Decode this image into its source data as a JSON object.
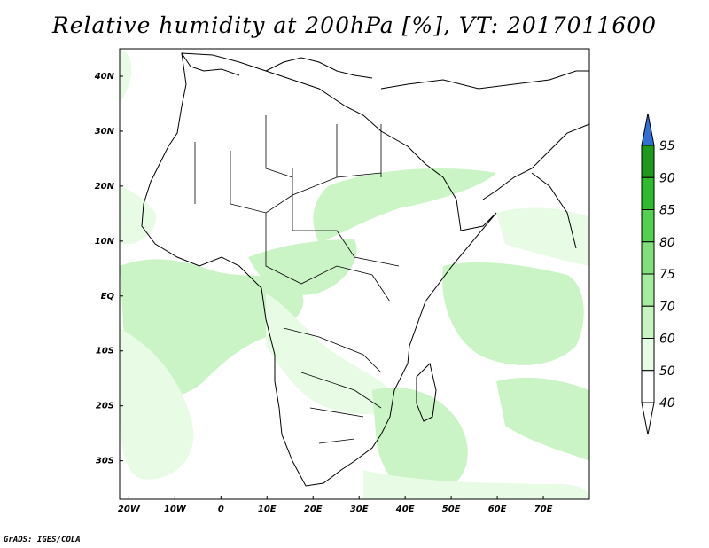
{
  "title": "Relative humidity at 200hPa [%], VT: 2017011600",
  "credit": "GrADS: IGES/COLA",
  "map": {
    "lon_range": [
      -22,
      80
    ],
    "lat_range": [
      -37,
      45
    ],
    "lon_ticks": [
      "20W",
      "10W",
      "0",
      "10E",
      "20E",
      "30E",
      "40E",
      "50E",
      "60E",
      "70E"
    ],
    "lat_ticks": [
      "40N",
      "30N",
      "20N",
      "10N",
      "EQ",
      "10S",
      "20S",
      "30S"
    ]
  },
  "colorbar": {
    "levels": [
      "40",
      "50",
      "60",
      "70",
      "75",
      "80",
      "85",
      "90",
      "95"
    ],
    "colors": [
      "#ffffff",
      "#e6fbe4",
      "#c8f4c2",
      "#a6eca0",
      "#7fe07a",
      "#52d04f",
      "#2fbb2e",
      "#1b9a1b",
      "#2f6fd6"
    ]
  }
}
